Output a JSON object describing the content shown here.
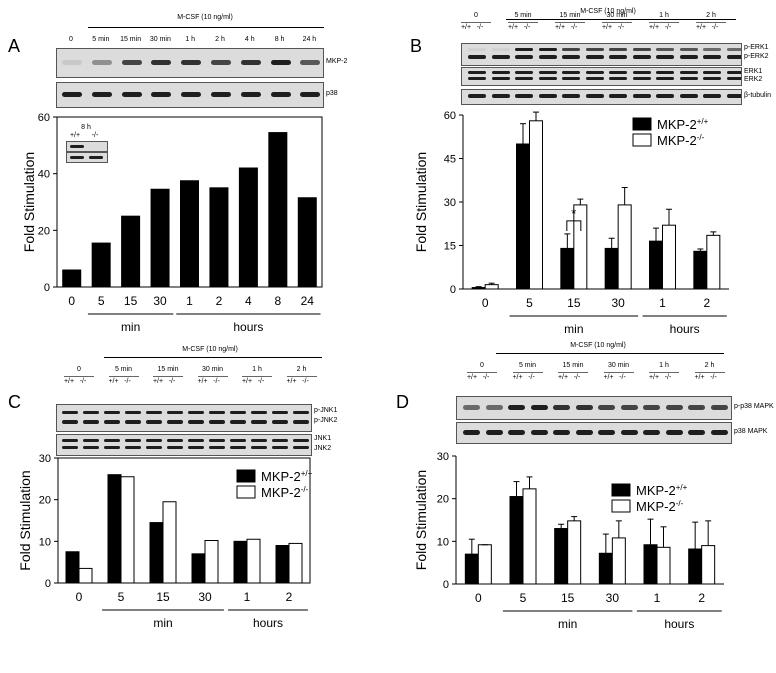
{
  "panels": [
    {
      "id": "A",
      "letter": "A",
      "mcsf_label": "M-CSF (10 ng/ml)",
      "lane_labels": [
        "0",
        "5 min",
        "15 min",
        "30 min",
        "1 h",
        "2 h",
        "4 h",
        "8 h",
        "24 h"
      ],
      "blot_labels": [
        "MKP-2",
        "p38"
      ],
      "inset": {
        "title": "8 h",
        "genotypes": [
          "+/+",
          "-/-"
        ]
      },
      "chart_data": {
        "type": "bar",
        "ylabel": "Fold Stimulation",
        "ylim": [
          0,
          60
        ],
        "yticks": [
          0,
          20,
          40,
          60
        ],
        "categories": [
          "0",
          "5",
          "15",
          "30",
          "1",
          "2",
          "4",
          "8",
          "24"
        ],
        "series": [
          {
            "values": [
              6,
              15.5,
              25,
              34.5,
              37.5,
              35,
              42,
              54.5,
              31.5
            ]
          }
        ],
        "groups": [
          {
            "label": "min",
            "from": 1,
            "to": 3
          },
          {
            "label": "hours",
            "from": 4,
            "to": 8
          }
        ],
        "grid": false,
        "colors": [
          "#000000"
        ]
      }
    },
    {
      "id": "B",
      "letter": "B",
      "mcsf_label": "M-CSF (10 ng/ml)",
      "time_labels": [
        "0",
        "5 min",
        "15 min",
        "30 min",
        "1 h",
        "2 h"
      ],
      "genotype_labels": [
        "+/+",
        "-/-"
      ],
      "blot_labels": [
        "p-ERK1",
        "p-ERK2",
        "ERK1",
        "ERK2",
        "β-tubulin"
      ],
      "significance": "*",
      "chart_data": {
        "type": "bar",
        "ylabel": "Fold Stimulation",
        "ylim": [
          0,
          60
        ],
        "yticks": [
          0,
          15,
          30,
          45,
          60
        ],
        "categories": [
          "0",
          "5",
          "15",
          "30",
          "1",
          "2"
        ],
        "series": [
          {
            "name": "MKP-2+/+",
            "values": [
              0.5,
              50,
              14,
              14,
              16.5,
              13
            ],
            "errors": [
              0.3,
              7,
              5,
              3.5,
              4.5,
              0.8
            ]
          },
          {
            "name": "MKP-2-/-",
            "values": [
              1.5,
              58,
              29,
              29,
              22,
              18.5
            ],
            "errors": [
              0.5,
              3,
              2,
              6,
              5.5,
              1.2
            ]
          }
        ],
        "legend": {
          "base": "MKP-2",
          "supers": [
            "+/+",
            "-/-"
          ],
          "position": "top-right"
        },
        "groups": [
          {
            "label": "min",
            "from": 1,
            "to": 3
          },
          {
            "label": "hours",
            "from": 4,
            "to": 5
          }
        ],
        "grid": false,
        "colors": [
          "#000000",
          "#ffffff"
        ]
      }
    },
    {
      "id": "C",
      "letter": "C",
      "mcsf_label": "M-CSF (10 ng/ml)",
      "time_labels": [
        "0",
        "5 min",
        "15 min",
        "30 min",
        "1 h",
        "2 h"
      ],
      "genotype_labels": [
        "+/+",
        "-/-"
      ],
      "blot_labels": [
        "p-JNK1",
        "p-JNK2",
        "JNK1",
        "JNK2"
      ],
      "chart_data": {
        "type": "bar",
        "ylabel": "Fold Stimulation",
        "ylim": [
          0,
          30
        ],
        "yticks": [
          0,
          10,
          20,
          30
        ],
        "categories": [
          "0",
          "5",
          "15",
          "30",
          "1",
          "2"
        ],
        "series": [
          {
            "name": "MKP-2+/+",
            "values": [
              7.5,
              26,
              14.5,
              7,
              10,
              9
            ]
          },
          {
            "name": "MKP-2-/-",
            "values": [
              3.5,
              25.5,
              19.5,
              10.2,
              10.5,
              9.5
            ]
          }
        ],
        "legend": {
          "base": "MKP-2",
          "supers": [
            "+/+",
            "-/-"
          ],
          "position": "top-right"
        },
        "groups": [
          {
            "label": "min",
            "from": 1,
            "to": 3
          },
          {
            "label": "hours",
            "from": 4,
            "to": 5
          }
        ],
        "grid": false,
        "colors": [
          "#000000",
          "#ffffff"
        ]
      }
    },
    {
      "id": "D",
      "letter": "D",
      "mcsf_label": "M-CSF (10 ng/ml)",
      "time_labels": [
        "0",
        "5 min",
        "15 min",
        "30 min",
        "1 h",
        "2 h"
      ],
      "genotype_labels": [
        "+/+",
        "-/-"
      ],
      "blot_labels": [
        "p-p38 MAPK",
        "p38 MAPK"
      ],
      "chart_data": {
        "type": "bar",
        "ylabel": "Fold Stimulation",
        "ylim": [
          0,
          30
        ],
        "yticks": [
          0,
          10,
          20,
          30
        ],
        "categories": [
          "0",
          "5",
          "15",
          "30",
          "1",
          "2"
        ],
        "series": [
          {
            "name": "MKP-2+/+",
            "values": [
              7,
              20.5,
              13,
              7.2,
              9.2,
              8.2
            ],
            "errors": [
              3.5,
              3.5,
              1,
              4.5,
              6,
              6.3
            ]
          },
          {
            "name": "MKP-2-/-",
            "values": [
              9.2,
              22.3,
              14.8,
              10.8,
              8.6,
              9
            ],
            "errors": [
              0,
              2.8,
              1,
              4,
              4.8,
              5.8
            ]
          }
        ],
        "legend": {
          "base": "MKP-2",
          "supers": [
            "+/+",
            "-/-"
          ],
          "position": "top-right"
        },
        "groups": [
          {
            "label": "min",
            "from": 1,
            "to": 3
          },
          {
            "label": "hours",
            "from": 4,
            "to": 5
          }
        ],
        "grid": false,
        "colors": [
          "#000000",
          "#ffffff"
        ]
      }
    }
  ]
}
